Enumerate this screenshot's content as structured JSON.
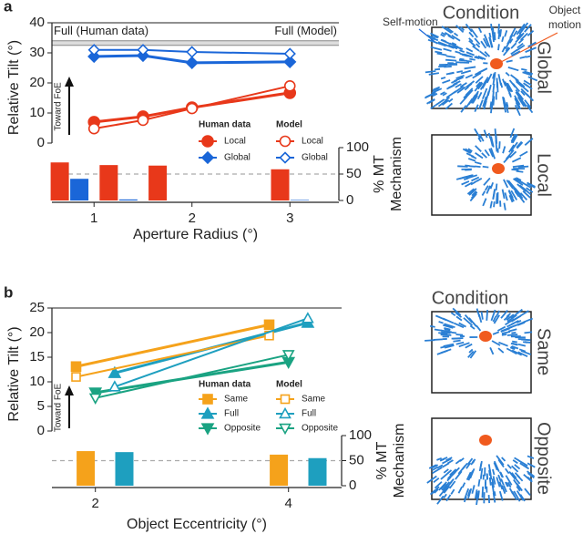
{
  "chart_data": [
    {
      "type": "line",
      "panel_label": "a",
      "xlabel": "Aperture Radius (°)",
      "ylabel": "Relative Tilt (°)",
      "y2label": [
        "% MT",
        "Mechanism"
      ],
      "xlim": [
        0.57,
        3.5
      ],
      "xticks": [
        1,
        2,
        3
      ],
      "ylim": [
        0,
        40
      ],
      "yticks": [
        0,
        10,
        20,
        30,
        40
      ],
      "y2lim": [
        0,
        100
      ],
      "y2ticks": [
        0,
        50,
        100
      ],
      "y2_reference": 50,
      "reference_lines": [
        {
          "label": "Full (Human data)",
          "value": 34
        },
        {
          "label": "Full (Model)",
          "value": 32.5
        }
      ],
      "annotation": "Toward FoE",
      "legend_groups": [
        "Human data",
        "Model"
      ],
      "series": [
        {
          "name": "Local",
          "group": 0,
          "color": "#e8381a",
          "marker": "circle",
          "filled": true,
          "x": [
            1,
            1.5,
            2,
            3
          ],
          "values": [
            7,
            8.8,
            11.8,
            16.7
          ]
        },
        {
          "name": "Global",
          "group": 0,
          "color": "#1a66d8",
          "marker": "diamond",
          "filled": true,
          "x": [
            1,
            1.5,
            2,
            3
          ],
          "values": [
            28.8,
            29.1,
            26.7,
            27
          ]
        },
        {
          "name": "Local",
          "group": 1,
          "color": "#e8381a",
          "marker": "circle",
          "filled": false,
          "x": [
            1,
            1.5,
            2,
            3
          ],
          "values": [
            4.8,
            7.6,
            11.5,
            19
          ]
        },
        {
          "name": "Global",
          "group": 1,
          "color": "#1a66d8",
          "marker": "diamond",
          "filled": false,
          "x": [
            1,
            1.5,
            2,
            3
          ],
          "values": [
            31,
            31,
            30.3,
            29.7
          ]
        },
        {
          "type": "bar",
          "axis": "y2",
          "color": "#e8381a",
          "x": [
            0.65,
            1.15,
            1.65,
            2.9
          ],
          "values": [
            72,
            67,
            66,
            59
          ]
        },
        {
          "type": "bar",
          "axis": "y2",
          "color": "#1a66d8",
          "x": [
            0.85,
            1.35,
            1.85,
            3.1
          ],
          "values": [
            41,
            2,
            0,
            1
          ]
        }
      ]
    },
    {
      "type": "line",
      "panel_label": "b",
      "xlabel": "Object Eccentricity (°)",
      "ylabel": "Relative Tilt (°)",
      "y2label": [
        "% MT",
        "Mechanism"
      ],
      "xlim": [
        1.55,
        4.55
      ],
      "xticks": [
        2,
        4
      ],
      "ylim": [
        0,
        25
      ],
      "yticks": [
        0,
        5,
        10,
        15,
        20,
        25
      ],
      "y2lim": [
        0,
        100
      ],
      "y2ticks": [
        0,
        50,
        100
      ],
      "y2_reference": 50,
      "annotation": "Toward FoE",
      "legend_groups": [
        "Human data",
        "Model"
      ],
      "series": [
        {
          "name": "Same",
          "group": 0,
          "color": "#f5a21b",
          "marker": "square",
          "filled": true,
          "x": [
            1.8,
            3.8
          ],
          "values": [
            13.1,
            21.6
          ]
        },
        {
          "name": "Full",
          "group": 0,
          "color": "#1e9fbf",
          "marker": "triangle-up",
          "filled": true,
          "x": [
            2.2,
            4.2
          ],
          "values": [
            11.8,
            22
          ]
        },
        {
          "name": "Opposite",
          "group": 0,
          "color": "#1aa382",
          "marker": "triangle-down",
          "filled": true,
          "x": [
            2.0,
            4.0
          ],
          "values": [
            7.8,
            14
          ]
        },
        {
          "name": "Same",
          "group": 1,
          "color": "#f5a21b",
          "marker": "square",
          "filled": false,
          "x": [
            1.8,
            3.8
          ],
          "values": [
            11,
            19.4
          ]
        },
        {
          "name": "Full",
          "group": 1,
          "color": "#1e9fbf",
          "marker": "triangle-up",
          "filled": false,
          "x": [
            2.2,
            4.2
          ],
          "values": [
            9,
            22.9
          ]
        },
        {
          "name": "Opposite",
          "group": 1,
          "color": "#1aa382",
          "marker": "triangle-down",
          "filled": false,
          "x": [
            2.0,
            4.0
          ],
          "values": [
            6.7,
            15.5
          ]
        },
        {
          "type": "bar",
          "axis": "y2",
          "color": "#f5a21b",
          "x": [
            1.9,
            3.9
          ],
          "values": [
            69,
            62
          ]
        },
        {
          "type": "bar",
          "axis": "y2",
          "color": "#1e9fbf",
          "x": [
            2.3,
            4.3
          ],
          "values": [
            67,
            55
          ]
        }
      ]
    }
  ],
  "illustrations": {
    "a": {
      "title": "Condition",
      "self_motion": "Self-motion",
      "object_motion": [
        "Object",
        "motion"
      ],
      "conditions": [
        "Global",
        "Local"
      ]
    },
    "b": {
      "title": "Condition",
      "conditions": [
        "Same",
        "Opposite"
      ]
    }
  }
}
